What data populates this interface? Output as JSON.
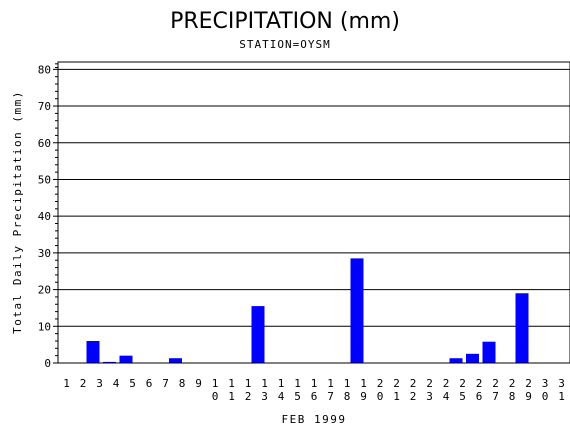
{
  "chart_data": {
    "type": "bar",
    "title": "PRECIPITATION (mm)",
    "subtitle": "STATION=OYSM",
    "xlabel": "FEB 1999",
    "ylabel": "Total Daily Precipitation (mm)",
    "ylim": [
      0,
      82
    ],
    "yticks": [
      0,
      10,
      20,
      30,
      40,
      50,
      60,
      70,
      80
    ],
    "grid": true,
    "bar_color": "#0000ff",
    "categories": [
      "1",
      "2",
      "3",
      "4",
      "5",
      "6",
      "7",
      "8",
      "9",
      "10",
      "11",
      "12",
      "13",
      "14",
      "15",
      "16",
      "17",
      "18",
      "19",
      "20",
      "21",
      "22",
      "23",
      "24",
      "25",
      "26",
      "27",
      "28",
      "29",
      "30",
      "31"
    ],
    "values": [
      0,
      6.0,
      0.3,
      2.0,
      0,
      0,
      1.3,
      0,
      0,
      0,
      0,
      15.5,
      0,
      0,
      0,
      0,
      0,
      28.5,
      0,
      0,
      0,
      0,
      0,
      1.3,
      2.5,
      5.8,
      0,
      19.0,
      0,
      0,
      0
    ]
  }
}
